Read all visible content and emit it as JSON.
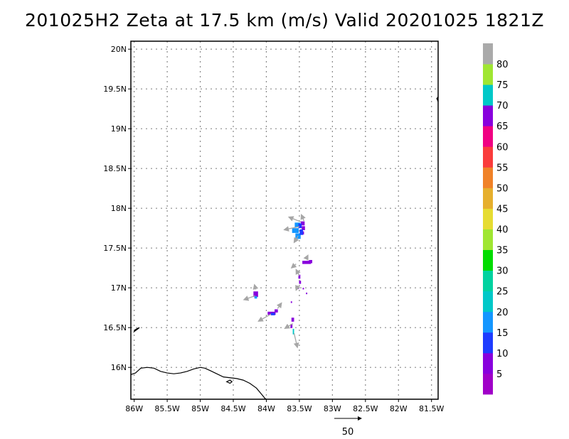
{
  "title": "201025H2 Zeta at 17.5 km (m/s) Valid 20201025 1821Z",
  "map": {
    "lon_range": [
      -86.05,
      -81.4
    ],
    "lat_range": [
      15.6,
      20.1
    ],
    "lon_ticks": [
      {
        "value": -86.0,
        "label": "86W"
      },
      {
        "value": -85.5,
        "label": "85.5W"
      },
      {
        "value": -85.0,
        "label": "85W"
      },
      {
        "value": -84.5,
        "label": "84.5W"
      },
      {
        "value": -84.0,
        "label": "84W"
      },
      {
        "value": -83.5,
        "label": "83.5W"
      },
      {
        "value": -83.0,
        "label": "83W"
      },
      {
        "value": -82.5,
        "label": "82.5W"
      },
      {
        "value": -82.0,
        "label": "82W"
      },
      {
        "value": -81.5,
        "label": "81.5W"
      }
    ],
    "lat_ticks": [
      {
        "value": 16.0,
        "label": "16N"
      },
      {
        "value": 16.5,
        "label": "16.5N"
      },
      {
        "value": 17.0,
        "label": "17N"
      },
      {
        "value": 17.5,
        "label": "17.5N"
      },
      {
        "value": 18.0,
        "label": "18N"
      },
      {
        "value": 18.5,
        "label": "18.5N"
      },
      {
        "value": 19.0,
        "label": "19N"
      },
      {
        "value": 19.5,
        "label": "19.5N"
      },
      {
        "value": 20.0,
        "label": "20N"
      }
    ],
    "grid": true,
    "coastline": [
      [
        -86.05,
        15.91
      ],
      [
        -85.98,
        15.93
      ],
      [
        -85.9,
        15.99
      ],
      [
        -85.8,
        16.0
      ],
      [
        -85.7,
        15.99
      ],
      [
        -85.6,
        15.95
      ],
      [
        -85.5,
        15.93
      ],
      [
        -85.4,
        15.92
      ],
      [
        -85.3,
        15.93
      ],
      [
        -85.2,
        15.95
      ],
      [
        -85.1,
        15.98
      ],
      [
        -85.0,
        16.0
      ],
      [
        -84.93,
        15.99
      ],
      [
        -84.85,
        15.96
      ],
      [
        -84.75,
        15.92
      ],
      [
        -84.65,
        15.88
      ],
      [
        -84.55,
        15.87
      ],
      [
        -84.45,
        15.86
      ],
      [
        -84.35,
        15.84
      ],
      [
        -84.25,
        15.8
      ],
      [
        -84.15,
        15.74
      ],
      [
        -84.08,
        15.67
      ],
      [
        -84.02,
        15.61
      ],
      [
        -84.0,
        15.6
      ]
    ],
    "islands": [
      [
        [
          -86.0,
          16.45
        ],
        [
          -85.95,
          16.48
        ],
        [
          -85.92,
          16.5
        ],
        [
          -85.95,
          16.49
        ],
        [
          -85.99,
          16.47
        ]
      ],
      [
        [
          -84.6,
          15.82
        ],
        [
          -84.55,
          15.84
        ],
        [
          -84.52,
          15.82
        ],
        [
          -84.55,
          15.8
        ]
      ],
      [
        [
          -81.42,
          19.38
        ],
        [
          -81.4,
          19.34
        ],
        [
          -81.4,
          19.4
        ]
      ]
    ],
    "wind_cells": [
      {
        "lon": -83.45,
        "lat": 17.81,
        "w": 0.06,
        "h": 0.05,
        "color": "#8800dd"
      },
      {
        "lon": -83.44,
        "lat": 17.75,
        "w": 0.05,
        "h": 0.05,
        "color": "#8800dd"
      },
      {
        "lon": -83.45,
        "lat": 17.69,
        "w": 0.04,
        "h": 0.04,
        "color": "#8800dd"
      },
      {
        "lon": -83.53,
        "lat": 17.79,
        "w": 0.08,
        "h": 0.06,
        "color": "#1496ff"
      },
      {
        "lon": -83.56,
        "lat": 17.72,
        "w": 0.1,
        "h": 0.06,
        "color": "#1496ff"
      },
      {
        "lon": -83.52,
        "lat": 17.65,
        "w": 0.08,
        "h": 0.07,
        "color": "#1496ff"
      },
      {
        "lon": -83.49,
        "lat": 17.78,
        "w": 0.05,
        "h": 0.06,
        "color": "#1e3cff"
      },
      {
        "lon": -83.47,
        "lat": 17.7,
        "w": 0.05,
        "h": 0.07,
        "color": "#1e3cff"
      },
      {
        "lon": -83.39,
        "lat": 17.32,
        "w": 0.13,
        "h": 0.04,
        "color": "#8800dd"
      },
      {
        "lon": -83.33,
        "lat": 17.33,
        "w": 0.05,
        "h": 0.04,
        "color": "#8800dd"
      },
      {
        "lon": -83.5,
        "lat": 17.14,
        "w": 0.03,
        "h": 0.05,
        "color": "#8800dd"
      },
      {
        "lon": -83.49,
        "lat": 17.07,
        "w": 0.03,
        "h": 0.04,
        "color": "#8800dd"
      },
      {
        "lon": -83.52,
        "lat": 17.0,
        "w": 0.03,
        "h": 0.03,
        "color": "#8800dd"
      },
      {
        "lon": -83.39,
        "lat": 16.93,
        "w": 0.02,
        "h": 0.02,
        "color": "#8800dd"
      },
      {
        "lon": -83.44,
        "lat": 16.99,
        "w": 0.02,
        "h": 0.02,
        "color": "#8800dd"
      },
      {
        "lon": -84.16,
        "lat": 16.92,
        "w": 0.07,
        "h": 0.07,
        "color": "#8800dd"
      },
      {
        "lon": -84.16,
        "lat": 16.88,
        "w": 0.04,
        "h": 0.03,
        "color": "#1496ff"
      },
      {
        "lon": -83.92,
        "lat": 16.68,
        "w": 0.12,
        "h": 0.04,
        "color": "#8800dd"
      },
      {
        "lon": -83.85,
        "lat": 16.71,
        "w": 0.05,
        "h": 0.04,
        "color": "#8800dd"
      },
      {
        "lon": -83.9,
        "lat": 16.67,
        "w": 0.06,
        "h": 0.03,
        "color": "#1e3cff"
      },
      {
        "lon": -83.6,
        "lat": 16.6,
        "w": 0.04,
        "h": 0.05,
        "color": "#8800dd"
      },
      {
        "lon": -83.62,
        "lat": 16.52,
        "w": 0.03,
        "h": 0.05,
        "color": "#8800dd"
      },
      {
        "lon": -83.59,
        "lat": 16.45,
        "w": 0.02,
        "h": 0.07,
        "color": "#00c8c8"
      },
      {
        "lon": -83.62,
        "lat": 16.82,
        "w": 0.02,
        "h": 0.02,
        "color": "#8800dd"
      }
    ],
    "wind_arrows": [
      {
        "lon": -83.5,
        "lat": 17.77,
        "u": -0.23,
        "v": -0.04
      },
      {
        "lon": -83.48,
        "lat": 17.83,
        "u": -0.18,
        "v": 0.06
      },
      {
        "lon": -83.52,
        "lat": 17.65,
        "u": -0.06,
        "v": -0.08
      },
      {
        "lon": -83.43,
        "lat": 17.84,
        "u": -0.04,
        "v": 0.08
      },
      {
        "lon": -83.4,
        "lat": 17.36,
        "u": 0.03,
        "v": 0.05
      },
      {
        "lon": -83.55,
        "lat": 17.3,
        "u": -0.07,
        "v": -0.05
      },
      {
        "lon": -83.5,
        "lat": 17.15,
        "u": -0.05,
        "v": 0.08
      },
      {
        "lon": -83.52,
        "lat": 17.03,
        "u": -0.03,
        "v": -0.06
      },
      {
        "lon": -84.17,
        "lat": 16.9,
        "u": -0.17,
        "v": -0.05
      },
      {
        "lon": -84.16,
        "lat": 16.98,
        "u": -0.02,
        "v": 0.06
      },
      {
        "lon": -83.93,
        "lat": 16.67,
        "u": -0.19,
        "v": -0.09
      },
      {
        "lon": -83.83,
        "lat": 16.74,
        "u": 0.06,
        "v": 0.07
      },
      {
        "lon": -83.6,
        "lat": 16.55,
        "u": -0.12,
        "v": -0.06
      },
      {
        "lon": -83.58,
        "lat": 16.43,
        "u": 0.05,
        "v": -0.18
      }
    ]
  },
  "colorbar": {
    "colors": [
      "#a000c8",
      "#8800dd",
      "#1e3cff",
      "#1496ff",
      "#00c8c8",
      "#00d2a0",
      "#00dc00",
      "#a0e632",
      "#e6dc32",
      "#e6af2d",
      "#f08228",
      "#fa3c3c",
      "#f00082",
      "#8800dd",
      "#00c8c8",
      "#a0e632",
      "#aaaaaa"
    ],
    "labels": [
      "5",
      "10",
      "15",
      "20",
      "25",
      "30",
      "35",
      "40",
      "45",
      "50",
      "55",
      "60",
      "65",
      "70",
      "75",
      "80"
    ]
  },
  "reference_arrow": {
    "label": "50"
  }
}
